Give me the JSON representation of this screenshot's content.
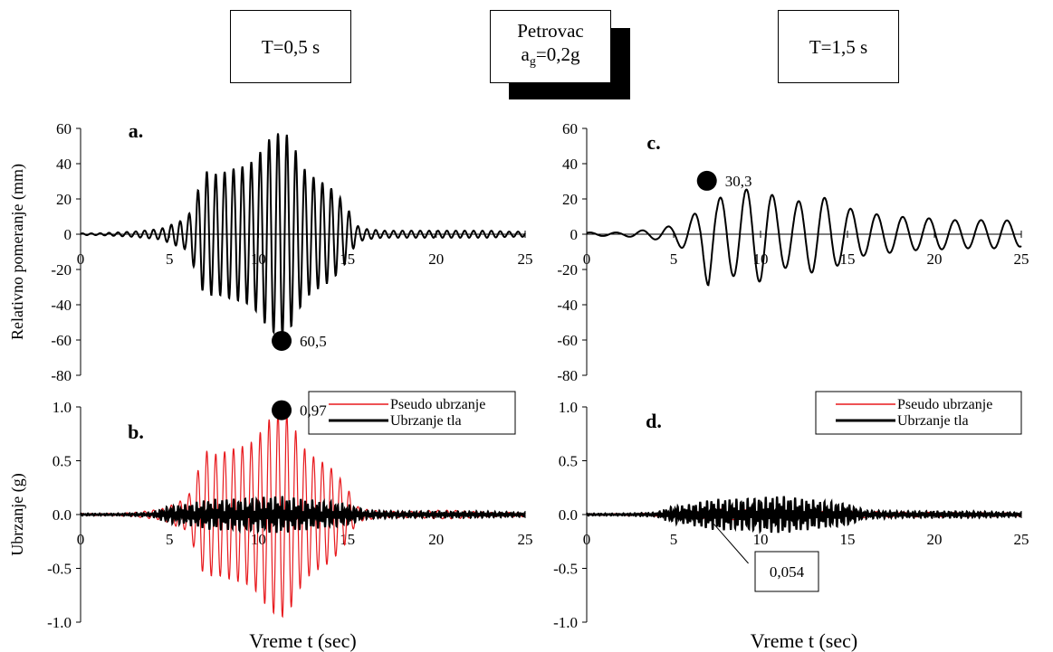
{
  "header": {
    "left_label": "T=0,5 s",
    "center_line1": "Petrovac",
    "center_line2_main": "a",
    "center_line2_sub": "g",
    "center_line2_rest": "=0,2g",
    "right_label": "T=1,5 s"
  },
  "chart_data": [
    {
      "id": "a",
      "panel_label": "a.",
      "type": "line",
      "ylabel": "Relativno pomeranje (mm)",
      "xlabel": "",
      "xlim": [
        0,
        25
      ],
      "ylim": [
        -80,
        60
      ],
      "x_ticks": [
        "0",
        "5",
        "10",
        "15",
        "20",
        "25"
      ],
      "y_ticks": [
        "60",
        "40",
        "20",
        "0",
        "-20",
        "-40",
        "-60",
        "-80"
      ],
      "series": [
        {
          "color": "#000000",
          "t": [
            0,
            1,
            2,
            3,
            4,
            4.5,
            5,
            5.5,
            6,
            6.5,
            7,
            7.5,
            8,
            8.5,
            9,
            9.5,
            10,
            10.5,
            11,
            11.5,
            12,
            12.5,
            13,
            13.5,
            14,
            14.5,
            15,
            15.5,
            16,
            17,
            18,
            19,
            20,
            21,
            22,
            23,
            24,
            25
          ],
          "amp": [
            0.5,
            0.5,
            1,
            1.5,
            2.5,
            3,
            5,
            7,
            9,
            22,
            36,
            34,
            35,
            37,
            38,
            40,
            45,
            53,
            57,
            58,
            50,
            38,
            33,
            30,
            27,
            22,
            15,
            5,
            3,
            2,
            2,
            2,
            2,
            2,
            2,
            2,
            1.5,
            1.5
          ]
        }
      ],
      "annotation": {
        "label": "60,5",
        "x": 11.0,
        "y": -60.5
      }
    },
    {
      "id": "c",
      "panel_label": "c.",
      "type": "line",
      "ylabel": "",
      "xlabel": "",
      "xlim": [
        0,
        25
      ],
      "ylim": [
        -80,
        60
      ],
      "x_ticks": [
        "0",
        "5",
        "10",
        "15",
        "20",
        "25"
      ],
      "y_ticks": [
        "60",
        "40",
        "20",
        "0",
        "-20",
        "-40",
        "-60",
        "-80"
      ],
      "series": [
        {
          "color": "#000000",
          "t": [
            0,
            1,
            2,
            3,
            4,
            4.5,
            5,
            5.5,
            6,
            6.5,
            7,
            7.5,
            8,
            8.5,
            9,
            9.5,
            10,
            11,
            12,
            13,
            14,
            15,
            16,
            17,
            18,
            19,
            20,
            21,
            22,
            23,
            24,
            25
          ],
          "amp": [
            1,
            1,
            1,
            2,
            3,
            4,
            5,
            8,
            10,
            14,
            30,
            20,
            22,
            24,
            25,
            26,
            27,
            20,
            18,
            22,
            20,
            15,
            12,
            11,
            10,
            9,
            9,
            8,
            8,
            8,
            8,
            7
          ]
        }
      ],
      "annotation": {
        "label": "30,3",
        "x": 6.6,
        "y": 30.3
      }
    },
    {
      "id": "b",
      "panel_label": "b.",
      "type": "line",
      "ylabel": "Ubrzanje (g)",
      "xlabel": "Vreme t (sec)",
      "xlim": [
        0,
        25
      ],
      "ylim": [
        -1.0,
        1.0
      ],
      "x_ticks": [
        "0",
        "5",
        "10",
        "15",
        "20",
        "25"
      ],
      "y_ticks": [
        "1.0",
        "0.5",
        "0.0",
        "-0.5",
        "-1.0"
      ],
      "legend_position": "top-right",
      "series": [
        {
          "name": "Pseudo ubrzanje",
          "color": "#e8191d",
          "t": [
            0,
            1,
            2,
            3,
            4,
            4.5,
            5,
            5.5,
            6,
            6.5,
            7,
            7.5,
            8,
            8.5,
            9,
            9.5,
            10,
            10.5,
            11,
            11.5,
            12,
            12.5,
            13,
            13.5,
            14,
            14.5,
            15,
            15.5,
            16,
            17,
            18,
            19,
            20,
            21,
            22,
            23,
            24,
            25
          ],
          "amp": [
            0.01,
            0.01,
            0.01,
            0.02,
            0.04,
            0.05,
            0.08,
            0.12,
            0.15,
            0.36,
            0.6,
            0.56,
            0.58,
            0.61,
            0.63,
            0.66,
            0.74,
            0.87,
            0.94,
            0.96,
            0.82,
            0.63,
            0.55,
            0.5,
            0.45,
            0.36,
            0.25,
            0.08,
            0.05,
            0.03,
            0.03,
            0.03,
            0.04,
            0.04,
            0.03,
            0.02,
            0.02,
            0.02
          ]
        },
        {
          "name": "Ubrzanje tla",
          "color": "#000000",
          "t": [
            0,
            2,
            4,
            4.5,
            5,
            6,
            7,
            8,
            9,
            10,
            11,
            12,
            13,
            14,
            15,
            15.5,
            16,
            18,
            20,
            22,
            25
          ],
          "amp": [
            0.01,
            0.01,
            0.02,
            0.05,
            0.08,
            0.1,
            0.14,
            0.15,
            0.15,
            0.16,
            0.18,
            0.16,
            0.14,
            0.12,
            0.1,
            0.07,
            0.04,
            0.03,
            0.03,
            0.03,
            0.02
          ]
        }
      ],
      "annotation": {
        "label": "0,97",
        "x": 11.0,
        "y": 0.97
      }
    },
    {
      "id": "d",
      "panel_label": "d.",
      "type": "line",
      "ylabel": "",
      "xlabel": "Vreme t (sec)",
      "xlim": [
        0,
        25
      ],
      "ylim": [
        -1.0,
        1.0
      ],
      "x_ticks": [
        "0",
        "5",
        "10",
        "15",
        "20",
        "25"
      ],
      "y_ticks": [
        "1.0",
        "0.5",
        "0.0",
        "-0.5",
        "-1.0"
      ],
      "legend_position": "top-right",
      "series": [
        {
          "name": "Pseudo ubrzanje",
          "color": "#e8191d",
          "t": [
            0,
            3,
            5,
            6.5,
            7,
            10,
            15,
            20,
            25
          ],
          "amp": [
            0.005,
            0.01,
            0.02,
            0.04,
            0.054,
            0.04,
            0.03,
            0.02,
            0.015
          ]
        },
        {
          "name": "Ubrzanje tla",
          "color": "#000000",
          "t": [
            0,
            2,
            4,
            4.5,
            5,
            6,
            7,
            8,
            9,
            10,
            11,
            12,
            13,
            14,
            15,
            15.5,
            16,
            18,
            20,
            22,
            25
          ],
          "amp": [
            0.01,
            0.01,
            0.02,
            0.05,
            0.08,
            0.1,
            0.14,
            0.15,
            0.15,
            0.16,
            0.18,
            0.16,
            0.14,
            0.12,
            0.1,
            0.07,
            0.04,
            0.03,
            0.03,
            0.03,
            0.02
          ]
        }
      ],
      "annotation": {
        "label": "0,054",
        "x": 7.0,
        "y": -0.054
      }
    }
  ]
}
